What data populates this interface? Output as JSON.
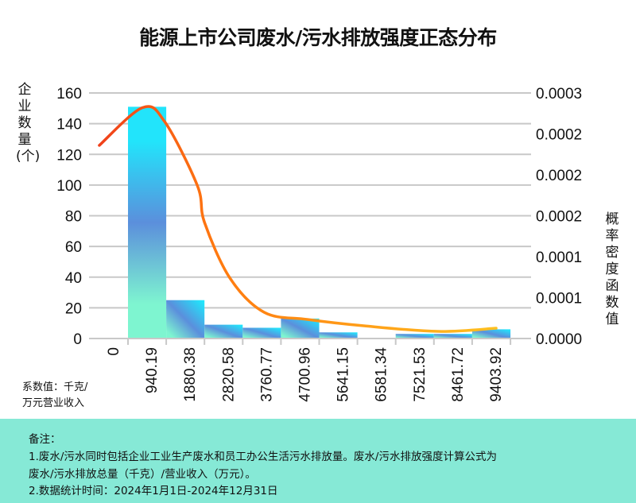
{
  "chart_data": {
    "type": "bar",
    "title": "能源上市公司废水/污水排放强度正态分布",
    "ylabel": "企业数量(个)",
    "y2label": "概率密度函数值",
    "unit_note": [
      "系数值：千克/",
      "万元营业收入"
    ],
    "x_tick_labels": [
      "0",
      "940.19",
      "1880.38",
      "2820.58",
      "3760.77",
      "4700.96",
      "5641.15",
      "6581.34",
      "7521.53",
      "8461.72",
      "9403.92"
    ],
    "bin_edges": [
      0,
      940.19,
      1880.38,
      2820.58,
      3760.77,
      4700.96,
      5641.15,
      6581.34,
      7521.53,
      8461.72,
      9403.92
    ],
    "values": [
      151,
      25,
      9,
      7,
      13,
      4,
      0,
      3,
      3,
      6
    ],
    "ylim": [
      0,
      160
    ],
    "y_ticks": [
      "0",
      "20",
      "40",
      "60",
      "80",
      "100",
      "120",
      "140",
      "160"
    ],
    "y2lim": [
      0,
      0.0003
    ],
    "y2_ticks": [
      "0.0000",
      "0.0001",
      "0.0001",
      "0.0002",
      "0.0002",
      "0.0002",
      "0.0003"
    ],
    "density_curve": {
      "x": [
        -705,
        353,
        901,
        1704,
        1880,
        2507,
        3350,
        4408,
        5799,
        7621,
        9051
      ],
      "y": [
        0.000236,
        0.000282,
        0.000265,
        0.000187,
        0.000142,
        7.38e-05,
        3.2e-05,
        2.33e-05,
        1.55e-05,
        8.7e-06,
        1.26e-05
      ]
    },
    "grid": true,
    "colors": {
      "bar_top": "#22e4fb",
      "bar_mid": "#5b8fdc",
      "bar_bottom": "#7ef5d0",
      "curve_start": "#f0401a",
      "curve_mid": "#ff7a10",
      "curve_end": "#ffc020",
      "grid": "#c8c8c8",
      "notes_bg": "#86e9d6"
    }
  },
  "notes": {
    "heading": "备注：",
    "line1": "1.废水/污水同时包括企业工业生产废水和员工办公生活污水排放量。废水/污水排放强度计算公式为",
    "line2": "废水/污水排放总量（千克）/营业收入（万元）。",
    "line3": "2.数据统计时间：2024年1月1日-2024年12月31日"
  }
}
